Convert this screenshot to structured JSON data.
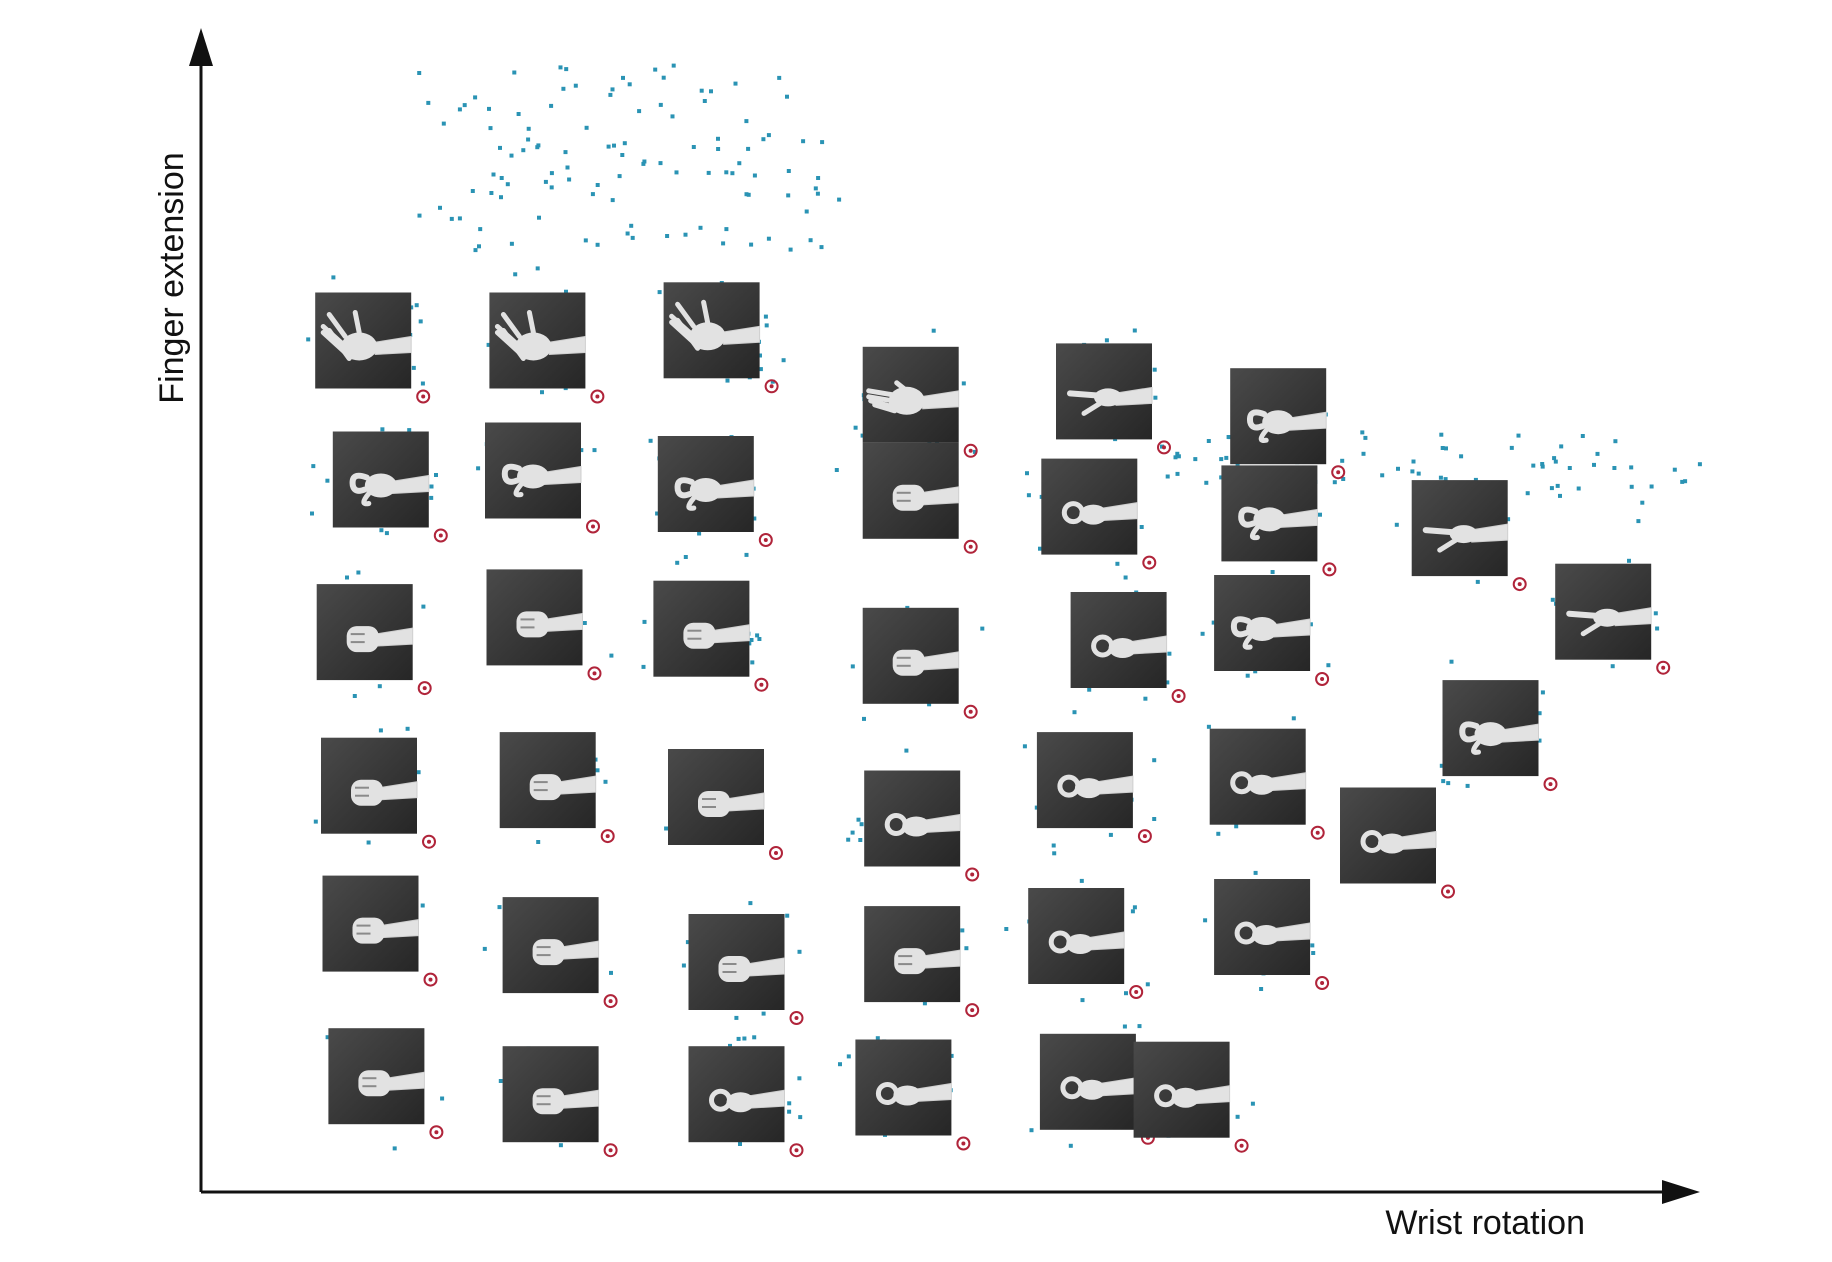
{
  "chart_data": {
    "type": "scatter",
    "title": "",
    "xlabel": "Wrist rotation",
    "ylabel": "Finger extension",
    "grid": false,
    "legend": "none",
    "xlim": [
      0,
      100
    ],
    "ylim": [
      0,
      100
    ],
    "point_color": "#2a93b4",
    "marker_color": "#b0243a",
    "thumbnails": [
      {
        "x": 7.8,
        "y": 79.6,
        "pose": "open"
      },
      {
        "x": 19.7,
        "y": 79.6,
        "pose": "open"
      },
      {
        "x": 31.6,
        "y": 80.5,
        "pose": "open"
      },
      {
        "x": 45.2,
        "y": 74.8,
        "pose": "flat"
      },
      {
        "x": 58.4,
        "y": 75.1,
        "pose": "point"
      },
      {
        "x": 70.3,
        "y": 72.9,
        "pose": "curl"
      },
      {
        "x": 9.0,
        "y": 67.3,
        "pose": "half"
      },
      {
        "x": 19.4,
        "y": 68.1,
        "pose": "half"
      },
      {
        "x": 31.2,
        "y": 66.9,
        "pose": "half"
      },
      {
        "x": 45.2,
        "y": 66.3,
        "pose": "fist"
      },
      {
        "x": 57.4,
        "y": 64.9,
        "pose": "pinch"
      },
      {
        "x": 69.7,
        "y": 64.3,
        "pose": "curl"
      },
      {
        "x": 82.7,
        "y": 63.0,
        "pose": "point"
      },
      {
        "x": 7.9,
        "y": 53.8,
        "pose": "fist"
      },
      {
        "x": 19.5,
        "y": 55.1,
        "pose": "fist"
      },
      {
        "x": 30.9,
        "y": 54.1,
        "pose": "fist"
      },
      {
        "x": 45.2,
        "y": 51.7,
        "pose": "fist"
      },
      {
        "x": 59.4,
        "y": 53.1,
        "pose": "pinch"
      },
      {
        "x": 69.2,
        "y": 54.6,
        "pose": "curl"
      },
      {
        "x": 92.5,
        "y": 55.6,
        "pose": "point"
      },
      {
        "x": 84.8,
        "y": 45.3,
        "pose": "curl"
      },
      {
        "x": 8.2,
        "y": 40.2,
        "pose": "fist"
      },
      {
        "x": 20.4,
        "y": 40.7,
        "pose": "fist"
      },
      {
        "x": 31.9,
        "y": 39.2,
        "pose": "fist"
      },
      {
        "x": 45.3,
        "y": 37.3,
        "pose": "pinch"
      },
      {
        "x": 57.1,
        "y": 40.7,
        "pose": "pinch"
      },
      {
        "x": 68.9,
        "y": 41.0,
        "pose": "pinch"
      },
      {
        "x": 77.8,
        "y": 35.8,
        "pose": "pinch"
      },
      {
        "x": 8.3,
        "y": 28.0,
        "pose": "fist"
      },
      {
        "x": 20.6,
        "y": 26.1,
        "pose": "fist"
      },
      {
        "x": 33.3,
        "y": 24.6,
        "pose": "fist"
      },
      {
        "x": 45.3,
        "y": 25.3,
        "pose": "fist"
      },
      {
        "x": 56.5,
        "y": 26.9,
        "pose": "pinch"
      },
      {
        "x": 69.2,
        "y": 27.7,
        "pose": "pinch"
      },
      {
        "x": 8.7,
        "y": 14.5,
        "pose": "fist"
      },
      {
        "x": 20.6,
        "y": 12.9,
        "pose": "fist"
      },
      {
        "x": 33.3,
        "y": 12.9,
        "pose": "pinch"
      },
      {
        "x": 44.7,
        "y": 13.5,
        "pose": "pinch"
      },
      {
        "x": 57.3,
        "y": 14.0,
        "pose": "pinch"
      },
      {
        "x": 63.7,
        "y": 13.3,
        "pose": "pinch"
      }
    ]
  }
}
